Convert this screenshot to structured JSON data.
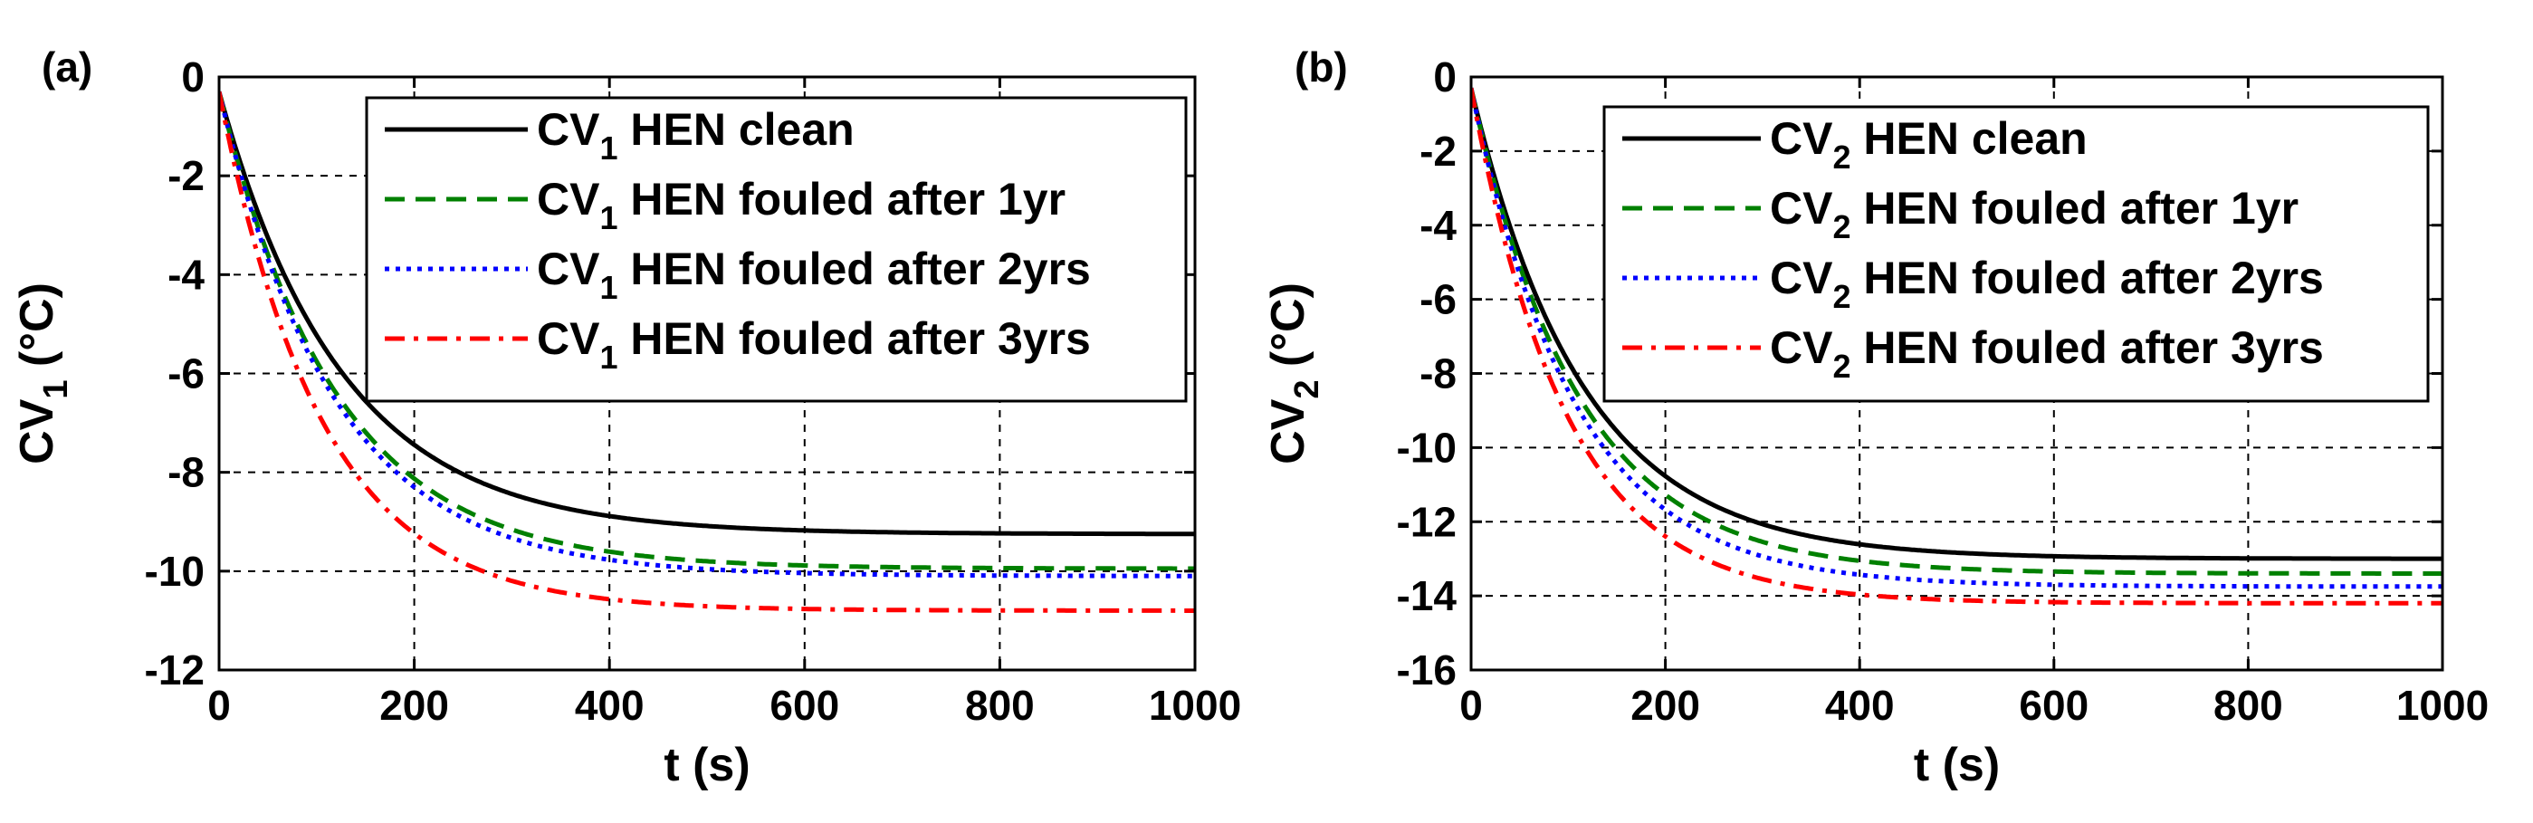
{
  "chart_data": [
    {
      "type": "line",
      "panel_label": "(a)",
      "xlabel": "t (s)",
      "ylabel": {
        "main": "CV",
        "sub": "1",
        "unit": " (°C)"
      },
      "xlim": [
        0,
        1000
      ],
      "ylim": [
        -12,
        0
      ],
      "xticks": [
        0,
        200,
        400,
        600,
        800,
        1000
      ],
      "yticks": [
        0,
        -2,
        -4,
        -6,
        -8,
        -10,
        -12
      ],
      "grid": true,
      "legend_position": "top-right",
      "series": [
        {
          "name": "clean",
          "legend": {
            "main": "CV",
            "sub": "1",
            "rest": " HEN clean"
          },
          "color": "#000000",
          "style": "solid",
          "start": -0.3,
          "final": -9.25,
          "tau": 125
        },
        {
          "name": "fouled-1yr",
          "legend": {
            "main": "CV",
            "sub": "1",
            "rest": " HEN fouled after 1yr"
          },
          "color": "#008000",
          "style": "dashed",
          "start": -0.3,
          "final": -9.95,
          "tau": 120
        },
        {
          "name": "fouled-2yrs",
          "legend": {
            "main": "CV",
            "sub": "1",
            "rest": " HEN fouled after 2yrs"
          },
          "color": "#0000ff",
          "style": "dotted",
          "start": -0.3,
          "final": -10.1,
          "tau": 118
        },
        {
          "name": "fouled-3yrs",
          "legend": {
            "main": "CV",
            "sub": "1",
            "rest": " HEN fouled after 3yrs"
          },
          "color": "#ff0000",
          "style": "dashdot",
          "start": -0.3,
          "final": -10.8,
          "tau": 105
        }
      ]
    },
    {
      "type": "line",
      "panel_label": "(b)",
      "xlabel": "t (s)",
      "ylabel": {
        "main": "CV",
        "sub": "2",
        "unit": " (°C)"
      },
      "xlim": [
        0,
        1000
      ],
      "ylim": [
        -16,
        0
      ],
      "xticks": [
        0,
        200,
        400,
        600,
        800,
        1000
      ],
      "yticks": [
        0,
        -2,
        -4,
        -6,
        -8,
        -10,
        -12,
        -14,
        -16
      ],
      "grid": true,
      "legend_position": "top-right",
      "series": [
        {
          "name": "clean",
          "legend": {
            "main": "CV",
            "sub": "2",
            "rest": " HEN clean"
          },
          "color": "#000000",
          "style": "solid",
          "start": -0.3,
          "final": -13.0,
          "tau": 115
        },
        {
          "name": "fouled-1yr",
          "legend": {
            "main": "CV",
            "sub": "2",
            "rest": " HEN fouled after 1yr"
          },
          "color": "#008000",
          "style": "dashed",
          "start": -0.3,
          "final": -13.4,
          "tau": 110
        },
        {
          "name": "fouled-2yrs",
          "legend": {
            "main": "CV",
            "sub": "2",
            "rest": " HEN fouled after 2yrs"
          },
          "color": "#0000ff",
          "style": "dotted",
          "start": -0.3,
          "final": -13.75,
          "tau": 107
        },
        {
          "name": "fouled-3yrs",
          "legend": {
            "main": "CV",
            "sub": "2",
            "rest": " HEN fouled after 3yrs"
          },
          "color": "#ff0000",
          "style": "dashdot",
          "start": -0.3,
          "final": -14.2,
          "tau": 98
        }
      ]
    }
  ]
}
